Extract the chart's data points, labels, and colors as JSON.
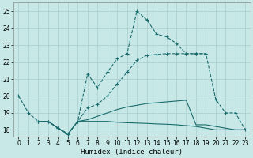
{
  "xlabel": "Humidex (Indice chaleur)",
  "bg_color": "#c8e8e8",
  "grid_color": "#a8cccc",
  "line_color": "#1a6b6b",
  "xlim": [
    -0.5,
    23.5
  ],
  "ylim": [
    17.6,
    25.5
  ],
  "xticks": [
    0,
    1,
    2,
    3,
    4,
    5,
    6,
    7,
    8,
    9,
    10,
    11,
    12,
    13,
    14,
    15,
    16,
    17,
    18,
    19,
    20,
    21,
    22,
    23
  ],
  "yticks": [
    18,
    19,
    20,
    21,
    22,
    23,
    24,
    25
  ],
  "series": [
    {
      "x": [
        0,
        1,
        2,
        3,
        4,
        5,
        6,
        7,
        8,
        9,
        10,
        11,
        12,
        13,
        14,
        15,
        16,
        17,
        18,
        19,
        20,
        21,
        22,
        23
      ],
      "y": [
        20.0,
        19.0,
        18.5,
        18.5,
        18.1,
        17.75,
        18.5,
        21.3,
        20.5,
        21.4,
        22.2,
        22.5,
        25.0,
        24.5,
        23.65,
        23.5,
        23.1,
        22.5,
        22.5,
        22.5,
        19.8,
        19.0,
        19.0,
        18.0
      ],
      "marker": true,
      "linestyle": "--"
    },
    {
      "x": [
        2,
        3,
        4,
        5,
        6,
        7,
        8,
        9,
        10,
        11,
        12,
        13,
        14,
        15,
        16,
        17,
        18,
        19
      ],
      "y": [
        18.5,
        18.5,
        18.1,
        17.75,
        18.5,
        19.3,
        19.5,
        20.0,
        20.7,
        21.4,
        22.1,
        22.4,
        22.45,
        22.5,
        22.5,
        22.5,
        22.5,
        22.5
      ],
      "marker": true,
      "linestyle": "--"
    },
    {
      "x": [
        2,
        3,
        4,
        5,
        6,
        7,
        8,
        9,
        10,
        11,
        12,
        13,
        14,
        15,
        16,
        17,
        18,
        19,
        20,
        21,
        22,
        23
      ],
      "y": [
        18.5,
        18.5,
        18.1,
        17.75,
        18.5,
        18.6,
        18.8,
        19.0,
        19.2,
        19.35,
        19.45,
        19.55,
        19.6,
        19.65,
        19.7,
        19.75,
        18.3,
        18.3,
        18.2,
        18.1,
        18.0,
        18.0
      ],
      "marker": false,
      "linestyle": "-"
    },
    {
      "x": [
        2,
        3,
        4,
        5,
        6,
        7,
        8,
        9,
        10,
        11,
        12,
        13,
        14,
        15,
        16,
        17,
        18,
        19,
        20,
        21,
        22,
        23
      ],
      "y": [
        18.5,
        18.5,
        18.1,
        17.75,
        18.5,
        18.5,
        18.5,
        18.5,
        18.45,
        18.42,
        18.4,
        18.38,
        18.35,
        18.33,
        18.3,
        18.25,
        18.2,
        18.1,
        18.0,
        18.0,
        18.0,
        18.0
      ],
      "marker": false,
      "linestyle": "-"
    }
  ]
}
